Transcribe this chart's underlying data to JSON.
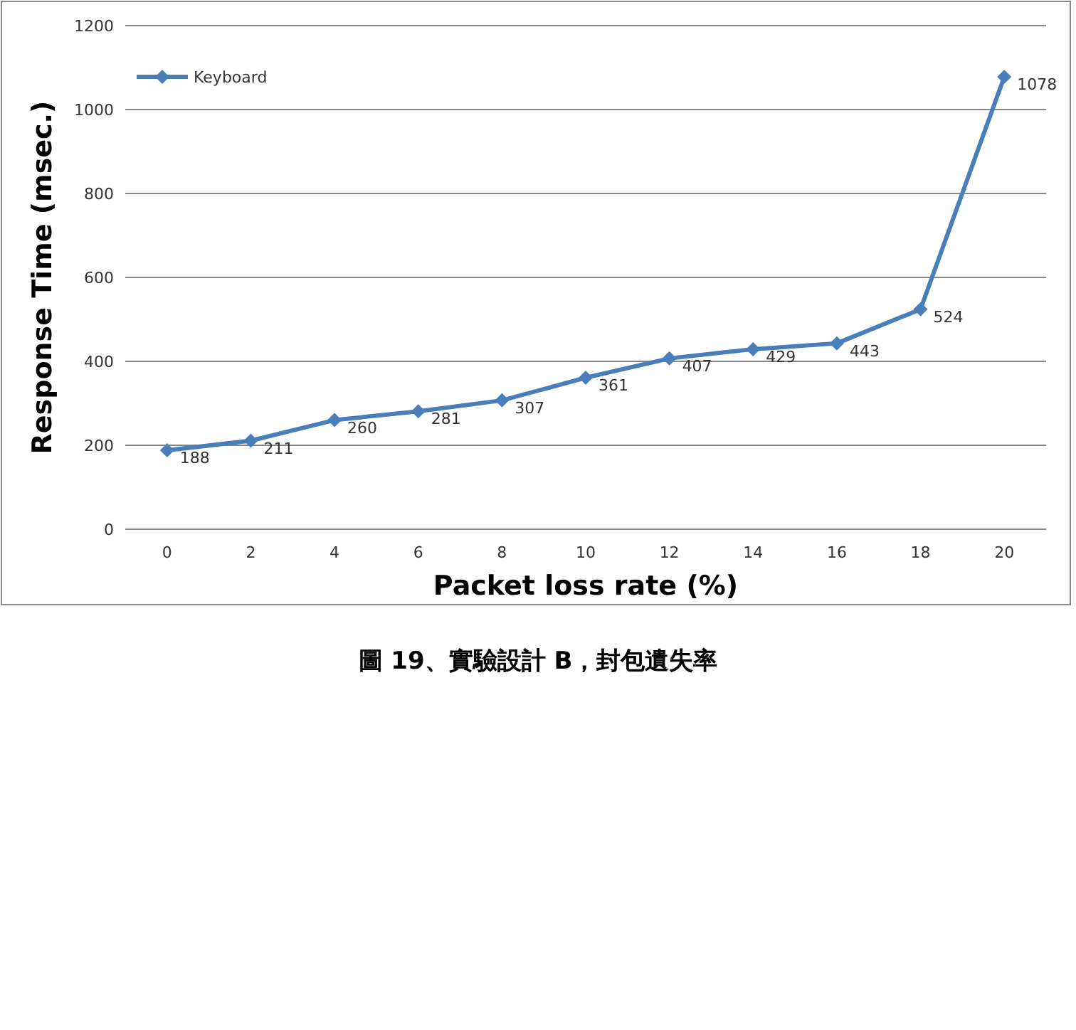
{
  "chart_data": {
    "type": "line",
    "xlabel": "Packet loss rate (%)",
    "ylabel": "Response Time (msec.)",
    "x": [
      0,
      2,
      4,
      6,
      8,
      10,
      12,
      14,
      16,
      18,
      20
    ],
    "series": [
      {
        "name": "Keyboard",
        "color": "#4a7ebb",
        "values": [
          188,
          211,
          260,
          281,
          307,
          361,
          407,
          429,
          443,
          524,
          1078
        ]
      }
    ],
    "xlim": [
      -1,
      21
    ],
    "xticks": [
      0,
      2,
      4,
      6,
      8,
      10,
      12,
      14,
      16,
      18,
      20
    ],
    "ylim": [
      0,
      1200
    ],
    "yticks": [
      0,
      200,
      400,
      600,
      800,
      1000,
      1200
    ],
    "grid": "y",
    "legend": "top left",
    "marker": "diamond",
    "line_style": "solid",
    "data_labels": true,
    "annotations": [
      "圖 19、實驗設計 B，封包遺失率"
    ]
  }
}
